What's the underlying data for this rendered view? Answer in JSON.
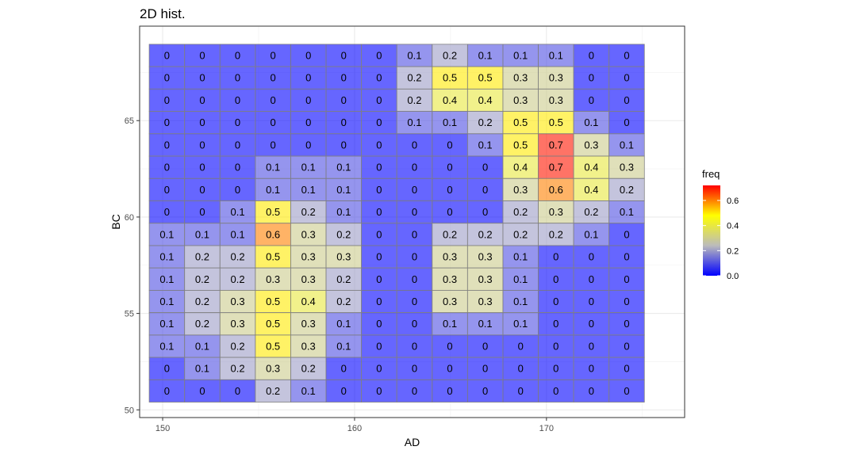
{
  "chart_data": {
    "type": "heatmap",
    "title": "2D hist.",
    "xlabel": "AD",
    "ylabel": "BC",
    "xlim": [
      148.8,
      177.2
    ],
    "ylim": [
      49.6,
      69.9
    ],
    "x_ticks": [
      150,
      160,
      170
    ],
    "y_ticks": [
      50,
      55,
      60,
      65
    ],
    "x_bin_start": 149.3,
    "x_bin_width": 1.843,
    "y_bin_start": 50.4,
    "y_bin_width": 1.16,
    "grid": true,
    "legend": {
      "title": "freq",
      "position": "right",
      "ticks": [
        0.0,
        0.2,
        0.4,
        0.6
      ],
      "tick_labels": [
        "0.0",
        "0.2",
        "0.4",
        "0.6"
      ],
      "range": [
        0,
        0.72
      ],
      "colors": [
        "#0000ff",
        "#bbbbbb",
        "#ffff00",
        "#ff0000"
      ]
    },
    "values_top_to_bottom": [
      [
        0,
        0,
        0,
        0,
        0,
        0,
        0,
        0.1,
        0.2,
        0.1,
        0.1,
        0.1,
        0,
        0
      ],
      [
        0,
        0,
        0,
        0,
        0,
        0,
        0,
        0.2,
        0.5,
        0.5,
        0.3,
        0.3,
        0,
        0
      ],
      [
        0,
        0,
        0,
        0,
        0,
        0,
        0,
        0.2,
        0.4,
        0.4,
        0.3,
        0.3,
        0,
        0
      ],
      [
        0,
        0,
        0,
        0,
        0,
        0,
        0,
        0.1,
        0.1,
        0.2,
        0.5,
        0.5,
        0.1,
        0
      ],
      [
        0,
        0,
        0,
        0,
        0,
        0,
        0,
        0,
        0,
        0.1,
        0.5,
        0.7,
        0.3,
        0.1
      ],
      [
        0,
        0,
        0,
        0.1,
        0.1,
        0.1,
        0,
        0,
        0,
        0,
        0.4,
        0.7,
        0.4,
        0.3
      ],
      [
        0,
        0,
        0,
        0.1,
        0.1,
        0.1,
        0,
        0,
        0,
        0,
        0.3,
        0.6,
        0.4,
        0.2
      ],
      [
        0,
        0,
        0.1,
        0.5,
        0.2,
        0.1,
        0,
        0,
        0,
        0,
        0.2,
        0.3,
        0.2,
        0.1
      ],
      [
        0.1,
        0.1,
        0.1,
        0.6,
        0.3,
        0.2,
        0,
        0,
        0.2,
        0.2,
        0.2,
        0.2,
        0.1,
        0
      ],
      [
        0.1,
        0.2,
        0.2,
        0.5,
        0.3,
        0.3,
        0,
        0,
        0.3,
        0.3,
        0.1,
        0,
        0,
        0
      ],
      [
        0.1,
        0.2,
        0.2,
        0.3,
        0.3,
        0.2,
        0,
        0,
        0.3,
        0.3,
        0.1,
        0,
        0,
        0
      ],
      [
        0.1,
        0.2,
        0.3,
        0.5,
        0.4,
        0.2,
        0,
        0,
        0.3,
        0.3,
        0.1,
        0,
        0,
        0
      ],
      [
        0.1,
        0.2,
        0.3,
        0.5,
        0.3,
        0.1,
        0,
        0,
        0.1,
        0.1,
        0.1,
        0,
        0,
        0
      ],
      [
        0.1,
        0.1,
        0.2,
        0.5,
        0.3,
        0.1,
        0,
        0,
        0,
        0,
        0,
        0,
        0,
        0
      ],
      [
        0,
        0.1,
        0.2,
        0.3,
        0.2,
        0,
        0,
        0,
        0,
        0,
        0,
        0,
        0,
        0
      ],
      [
        0,
        0,
        0,
        0.2,
        0.1,
        0,
        0,
        0,
        0,
        0,
        0,
        0,
        0,
        0
      ]
    ]
  }
}
